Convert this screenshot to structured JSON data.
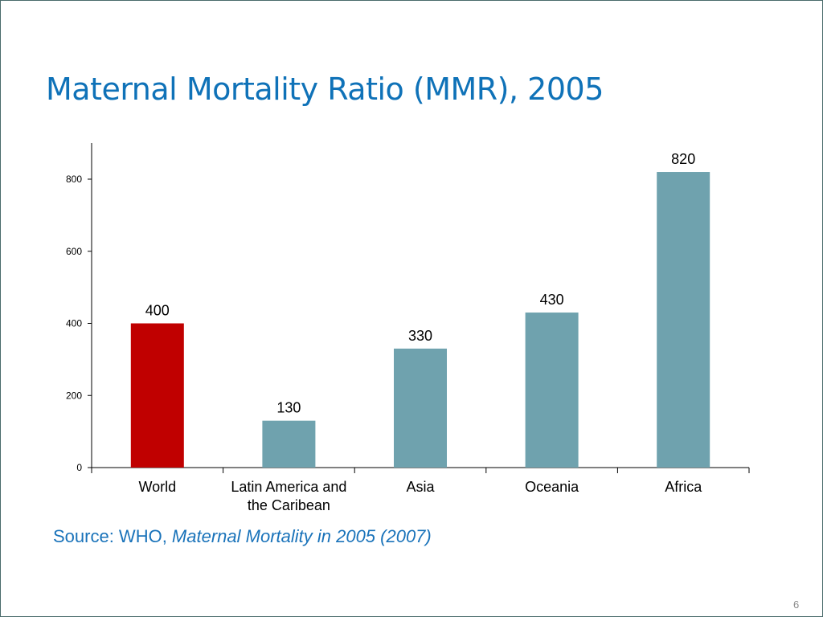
{
  "slide": {
    "title": "Maternal Mortality Ratio (MMR), 2005",
    "source_prefix": "Source: WHO, ",
    "source_italic": "Maternal Mortality in 2005 (2007)",
    "page_number": "6"
  },
  "colors": {
    "title": "#0f72b8",
    "highlight_bar": "#c00000",
    "default_bar": "#6fa2ae",
    "source": "#1a73ba"
  },
  "chart_data": {
    "type": "bar",
    "categories": [
      [
        "World"
      ],
      [
        "Latin America and",
        "the Caribean"
      ],
      [
        "Asia"
      ],
      [
        "Oceania"
      ],
      [
        "Africa"
      ]
    ],
    "values": [
      400,
      130,
      330,
      430,
      820
    ],
    "data_labels": [
      "400",
      "130",
      "330",
      "430",
      "820"
    ],
    "bar_colors": [
      "#c00000",
      "#6fa2ae",
      "#6fa2ae",
      "#6fa2ae",
      "#6fa2ae"
    ],
    "yticks": [
      0,
      200,
      400,
      600,
      800
    ],
    "ylim": [
      0,
      900
    ],
    "grid": false,
    "legend": "none"
  }
}
